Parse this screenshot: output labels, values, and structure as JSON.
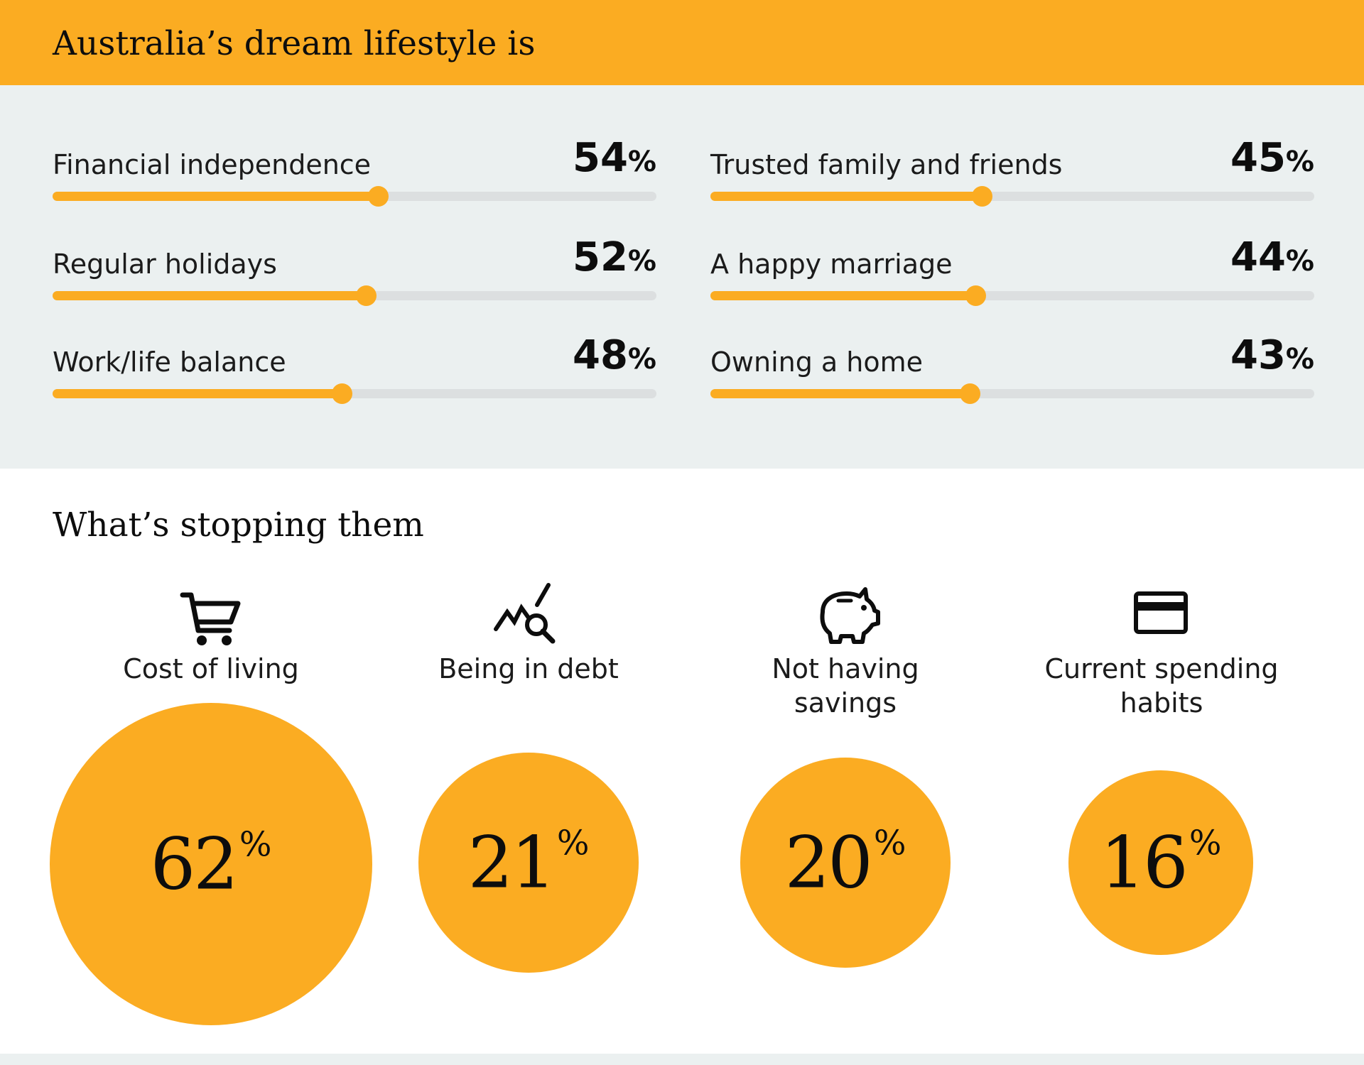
{
  "header": {
    "title": "Australia’s dream lifestyle is"
  },
  "lifestyle": {
    "items": [
      {
        "label": "Financial independence",
        "value": "54",
        "unit": "%",
        "fill": 0.54
      },
      {
        "label": "Regular holidays",
        "value": "52",
        "unit": "%",
        "fill": 0.52
      },
      {
        "label": "Work/life balance",
        "value": "48",
        "unit": "%",
        "fill": 0.48
      },
      {
        "label": "Trusted family and friends",
        "value": "45",
        "unit": "%",
        "fill": 0.45
      },
      {
        "label": "A happy marriage",
        "value": "44",
        "unit": "%",
        "fill": 0.44
      },
      {
        "label": "Owning a home",
        "value": "43",
        "unit": "%",
        "fill": 0.43
      }
    ]
  },
  "obstacles": {
    "title": "What’s stopping them",
    "items": [
      {
        "label": "Cost of living",
        "value": "62",
        "unit": "%",
        "icon": "shopping-cart-icon"
      },
      {
        "label": "Being in debt",
        "value": "21",
        "unit": "%",
        "icon": "debt-chart-magnifier-icon"
      },
      {
        "label": "Not having savings",
        "value": "20",
        "unit": "%",
        "icon": "piggy-bank-icon"
      },
      {
        "label": "Current spending habits",
        "value": "16",
        "unit": "%",
        "icon": "credit-card-icon"
      }
    ]
  },
  "colors": {
    "accent": "#fbac22",
    "panel": "#ebf0f0",
    "track": "#dcdfe0",
    "text": "#0d0d0d"
  },
  "chart_data": [
    {
      "type": "bar",
      "title": "Australia’s dream lifestyle is",
      "categories": [
        "Financial independence",
        "Regular holidays",
        "Work/life balance",
        "Trusted family and friends",
        "A happy marriage",
        "Owning a home"
      ],
      "values": [
        54,
        52,
        48,
        45,
        44,
        43
      ],
      "unit": "%",
      "ylim": [
        0,
        100
      ],
      "grid": false
    },
    {
      "type": "bubble",
      "title": "What’s stopping them",
      "categories": [
        "Cost of living",
        "Being in debt",
        "Not having savings",
        "Current spending habits"
      ],
      "values": [
        62,
        21,
        20,
        16
      ],
      "unit": "%"
    }
  ]
}
